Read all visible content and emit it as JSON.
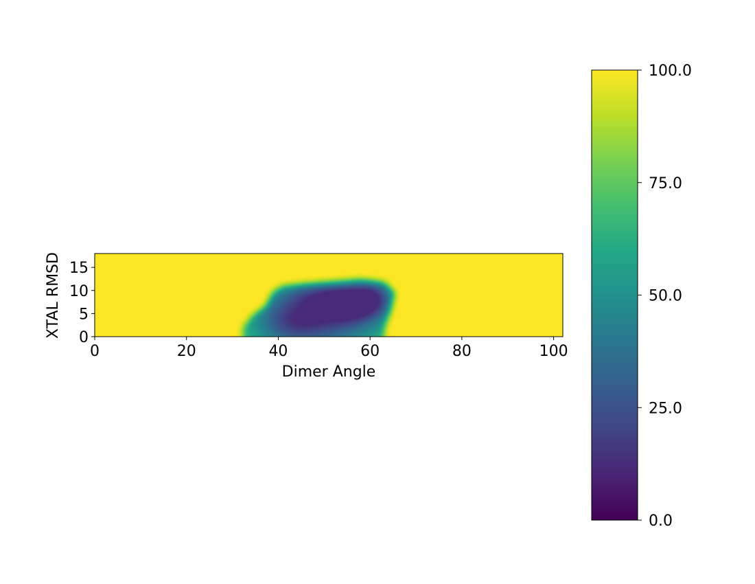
{
  "chart_data": {
    "type": "heatmap",
    "title": "",
    "xlabel": "Dimer Angle",
    "ylabel": "XTAL RMSD",
    "xlim": [
      0,
      102
    ],
    "ylim": [
      0,
      18
    ],
    "x_ticks": [
      0,
      20,
      40,
      60,
      80,
      100
    ],
    "y_ticks": [
      0,
      5,
      10,
      15
    ],
    "colorbar": {
      "colormap": "viridis",
      "vmin": 0.0,
      "vmax": 100.0,
      "ticks": [
        "0.0",
        "25.0",
        "50.0",
        "75.0",
        "100.0"
      ]
    },
    "background_value": 100,
    "wells": [
      {
        "x": 56.5,
        "y": 7.5,
        "sx": 5.0,
        "sy": 3.0,
        "depth": 48
      },
      {
        "x": 50.0,
        "y": 4.0,
        "sx": 9.0,
        "sy": 5.0,
        "depth": 45
      },
      {
        "x": 42.0,
        "y": 3.5,
        "sx": 5.5,
        "sy": 4.0,
        "depth": 26
      },
      {
        "x": 61.0,
        "y": 9.0,
        "sx": 3.0,
        "sy": 2.8,
        "depth": 22
      },
      {
        "x": 48.0,
        "y": 9.0,
        "sx": 5.0,
        "sy": 2.0,
        "depth": 18
      }
    ],
    "region": {
      "floor": 38,
      "polygon": [
        [
          32.5,
          0
        ],
        [
          32.5,
          1.8
        ],
        [
          34.5,
          4.3
        ],
        [
          37.5,
          6.5
        ],
        [
          39.0,
          9.5
        ],
        [
          41.0,
          10.8
        ],
        [
          46.0,
          11.3
        ],
        [
          53.0,
          11.8
        ],
        [
          58.0,
          12.2
        ],
        [
          63.0,
          11.6
        ],
        [
          65.2,
          9.5
        ],
        [
          64.2,
          5.5
        ],
        [
          63.0,
          2.2
        ],
        [
          62.6,
          0
        ]
      ]
    }
  }
}
